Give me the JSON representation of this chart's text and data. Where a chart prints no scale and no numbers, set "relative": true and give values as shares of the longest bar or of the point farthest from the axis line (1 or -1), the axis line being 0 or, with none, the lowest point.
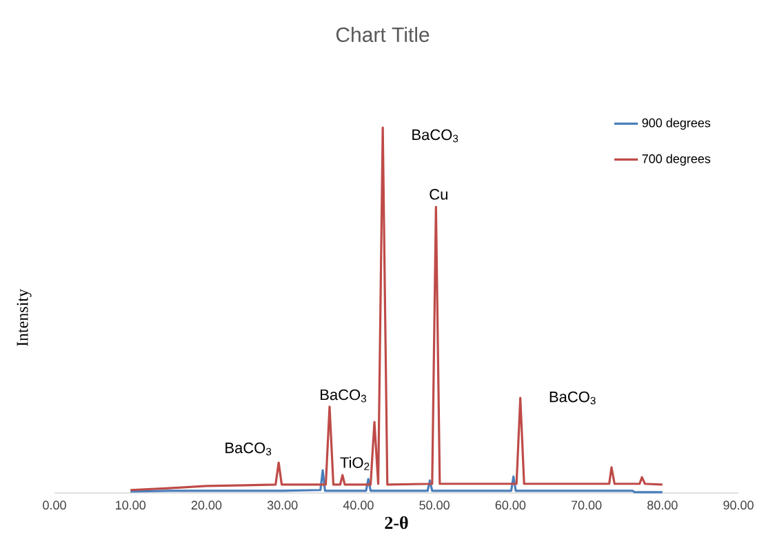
{
  "chart_data": {
    "type": "line",
    "title": "Chart Title",
    "xlabel": "2-θ",
    "ylabel": "Intensity",
    "relative": true,
    "xlim": [
      0,
      90
    ],
    "xticks": [
      {
        "value": 0,
        "label": "0.00"
      },
      {
        "value": 10,
        "label": "10.00"
      },
      {
        "value": 20,
        "label": "20.00"
      },
      {
        "value": 30,
        "label": "30.00"
      },
      {
        "value": 40,
        "label": "40.00"
      },
      {
        "value": 50,
        "label": "50.00"
      },
      {
        "value": 60,
        "label": "60.00"
      },
      {
        "value": 70,
        "label": "70.00"
      },
      {
        "value": 80,
        "label": "80.00"
      },
      {
        "value": 90,
        "label": "90.00"
      }
    ],
    "legend": "top right",
    "grid": false,
    "marker": "none",
    "series": [
      {
        "name": "900 degrees",
        "color": "#4a7ebb",
        "x": [
          10,
          15,
          20,
          30,
          35.0,
          35.3,
          35.6,
          41.0,
          41.3,
          41.6,
          49.1,
          49.4,
          49.7,
          60.1,
          60.4,
          60.7,
          76.1,
          76.3,
          80
        ],
        "values": [
          0.004,
          0.006,
          0.006,
          0.006,
          0.008,
          0.062,
          0.006,
          0.006,
          0.038,
          0.006,
          0.006,
          0.034,
          0.006,
          0.006,
          0.045,
          0.006,
          0.006,
          0.002,
          0.002
        ]
      },
      {
        "name": "700 degrees",
        "color": "#be4b48",
        "x": [
          10,
          15,
          20,
          25,
          29.1,
          29.5,
          29.9,
          35.7,
          36.2,
          36.7,
          37.6,
          37.9,
          38.2,
          41.6,
          42.1,
          42.6,
          43.2,
          43.8,
          49.7,
          50.2,
          50.7,
          60.8,
          61.3,
          61.8,
          73.0,
          73.3,
          73.7,
          77.0,
          77.3,
          77.7,
          80
        ],
        "values": [
          0.008,
          0.013,
          0.019,
          0.021,
          0.023,
          0.083,
          0.023,
          0.023,
          0.236,
          0.023,
          0.023,
          0.049,
          0.023,
          0.023,
          0.194,
          0.025,
          1.0,
          0.023,
          0.025,
          0.783,
          0.025,
          0.025,
          0.26,
          0.025,
          0.025,
          0.07,
          0.025,
          0.025,
          0.043,
          0.025,
          0.023
        ]
      }
    ],
    "annotations": [
      {
        "text": "BaCO$_{3}$",
        "x": 29.5,
        "y": 0.083
      },
      {
        "text": "BaCO$_{3}$",
        "x": 36.2,
        "y": 0.236
      },
      {
        "text": "TiO$_{2}$",
        "x": 42.1,
        "y": 0.194
      },
      {
        "text": "BaCO$_{3}$",
        "x": 43.2,
        "y": 1.0
      },
      {
        "text": "Cu",
        "x": 50.2,
        "y": 0.783
      },
      {
        "text": "BaCO$_{3}$",
        "x": 61.3,
        "y": 0.26
      }
    ]
  }
}
